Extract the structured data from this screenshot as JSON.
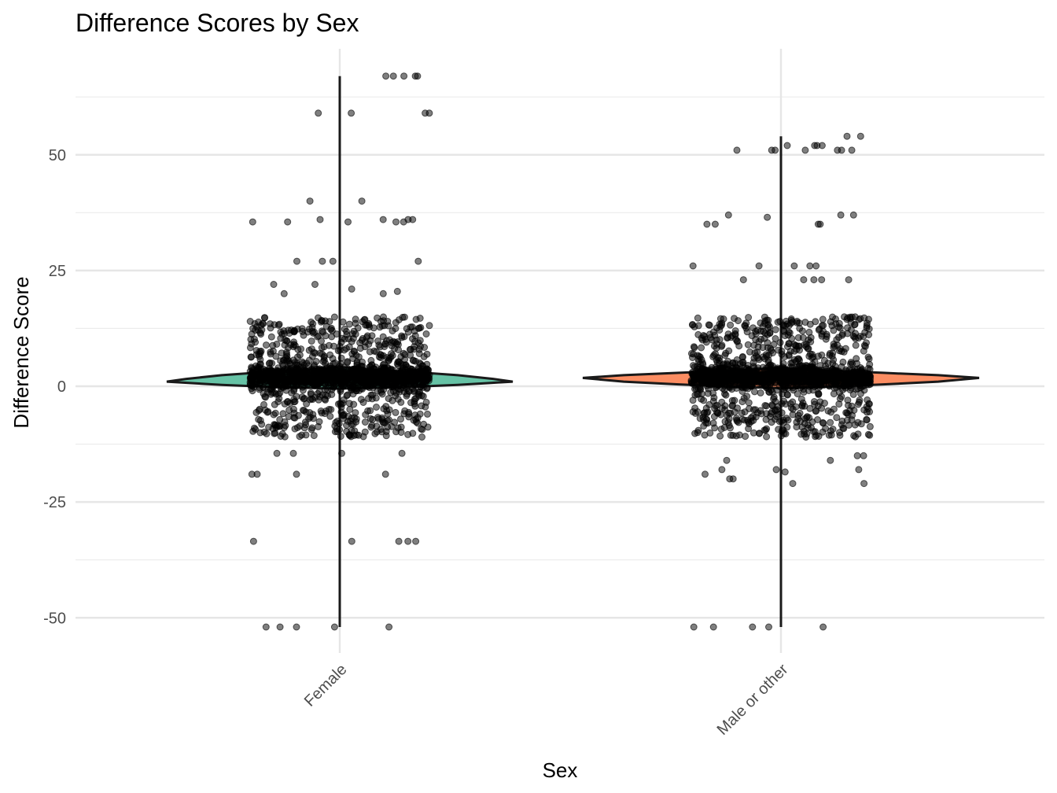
{
  "chart_data": {
    "type": "violin",
    "title": "Difference Scores by Sex",
    "xlabel": "Sex",
    "ylabel": "Difference Score",
    "categories": [
      "Female",
      "Male or other"
    ],
    "ylim": [
      -57,
      70
    ],
    "yticks": [
      -50,
      -25,
      0,
      25,
      50
    ],
    "ytick_labels": [
      "-50",
      "-25",
      "0",
      "25",
      "50"
    ],
    "grid": true,
    "legend": "none",
    "colors": {
      "Female": "#66c2a5",
      "Male or other": "#fc8d62",
      "points": "#000000",
      "outline": "#1a1a1a"
    },
    "groups": [
      {
        "name": "Female",
        "color": "#66c2a5",
        "min": -52,
        "max": 67,
        "center": 2,
        "outliers_y": [
          67,
          67,
          67,
          67,
          67,
          59,
          59,
          59,
          59,
          40,
          40,
          36,
          36,
          36,
          36,
          35.5,
          35.5,
          35.5,
          35.5,
          35.5,
          27,
          27,
          27,
          27,
          22,
          22,
          21,
          20.5,
          20,
          20,
          -14.5,
          -14.5,
          -14.5,
          -14.5,
          -19,
          -19,
          -19,
          -19,
          -33.5,
          -33.5,
          -33.5,
          -33.5,
          -33.5,
          -52,
          -52,
          -52,
          -52,
          -52
        ]
      },
      {
        "name": "Male or other",
        "color": "#fc8d62",
        "min": -52,
        "max": 54,
        "center": 2,
        "outliers_y": [
          54,
          54,
          52,
          52,
          52,
          52,
          51,
          51,
          51,
          51,
          51,
          51,
          51,
          37,
          37,
          37,
          36.5,
          35,
          35,
          35,
          35,
          26,
          26,
          26,
          26,
          26,
          23,
          23,
          23,
          23,
          23,
          -15,
          -15,
          -16,
          -16,
          -18,
          -18,
          -18,
          -18.5,
          -19,
          -20,
          -20,
          -21,
          -21,
          -52,
          -52,
          -52,
          -52,
          -52
        ]
      }
    ]
  }
}
